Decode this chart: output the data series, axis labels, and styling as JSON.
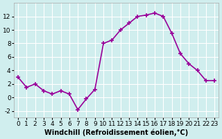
{
  "x": [
    0,
    1,
    2,
    3,
    4,
    5,
    6,
    7,
    8,
    9,
    10,
    11,
    12,
    13,
    14,
    15,
    16,
    17,
    18,
    19,
    20,
    21,
    22,
    23
  ],
  "y": [
    3.0,
    1.5,
    2.0,
    1.0,
    0.5,
    1.0,
    0.5,
    -1.8,
    -0.2,
    1.2,
    8.0,
    8.5,
    10.0,
    11.0,
    12.0,
    12.2,
    12.5,
    12.0,
    9.5,
    6.5,
    5.0,
    4.0,
    2.5,
    2.5
  ],
  "line_color": "#990099",
  "marker": "P",
  "bg_color": "#d0eeee",
  "grid_color": "#ffffff",
  "xlabel": "Windchill (Refroidissement éolien,°C)",
  "xlim": [
    -0.5,
    23.5
  ],
  "ylim": [
    -3,
    14
  ],
  "yticks": [
    -2,
    0,
    2,
    4,
    6,
    8,
    10,
    12
  ],
  "xticks": [
    0,
    1,
    2,
    3,
    4,
    5,
    6,
    7,
    8,
    9,
    10,
    11,
    12,
    13,
    14,
    15,
    16,
    17,
    18,
    19,
    20,
    21,
    22,
    23
  ],
  "xlabel_fontsize": 7,
  "tick_fontsize": 6.5,
  "linewidth": 1.2,
  "markersize": 4
}
